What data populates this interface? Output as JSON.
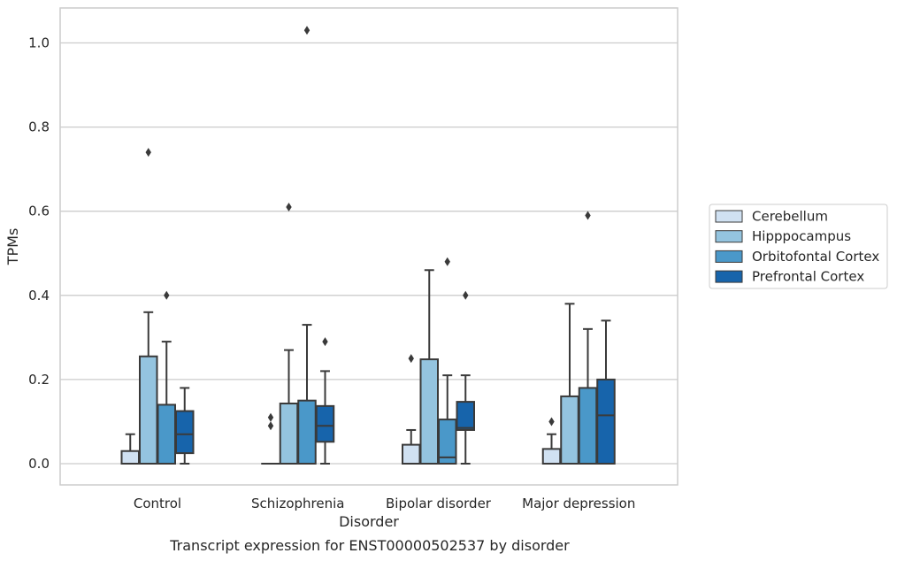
{
  "caption": "Transcript expression for ENST00000502537 by disorder",
  "chart_data": {
    "type": "box",
    "xlabel": "Disorder",
    "ylabel": "TPMs",
    "ylim": [
      -0.05,
      1.08
    ],
    "yticks": [
      "0.0",
      "0.2",
      "0.4",
      "0.6",
      "0.8",
      "1.0"
    ],
    "grid": "horizontal",
    "legend_position": "right",
    "categories": [
      "Control",
      "Schizophrenia",
      "Bipolar disorder",
      "Major depression"
    ],
    "series": [
      {
        "name": "Cerebellum",
        "color": "#d0e1f2",
        "boxes": [
          {
            "q1": 0.0,
            "median": 0.0,
            "q3": 0.03,
            "whisker_low": 0.0,
            "whisker_high": 0.07,
            "outliers": []
          },
          {
            "q1": 0.0,
            "median": 0.0,
            "q3": 0.0,
            "whisker_low": 0.0,
            "whisker_high": 0.0,
            "outliers": [
              0.09,
              0.11
            ]
          },
          {
            "q1": 0.0,
            "median": 0.0,
            "q3": 0.045,
            "whisker_low": 0.0,
            "whisker_high": 0.08,
            "outliers": [
              0.25
            ]
          },
          {
            "q1": 0.0,
            "median": 0.0,
            "q3": 0.035,
            "whisker_low": 0.0,
            "whisker_high": 0.07,
            "outliers": [
              0.1
            ]
          }
        ]
      },
      {
        "name": "Hipppocampus",
        "color": "#94c4df",
        "boxes": [
          {
            "q1": 0.0,
            "median": 0.0,
            "q3": 0.255,
            "whisker_low": 0.0,
            "whisker_high": 0.36,
            "outliers": [
              0.74
            ]
          },
          {
            "q1": 0.0,
            "median": 0.0,
            "q3": 0.143,
            "whisker_low": 0.0,
            "whisker_high": 0.27,
            "outliers": [
              0.61
            ]
          },
          {
            "q1": 0.0,
            "median": 0.0,
            "q3": 0.248,
            "whisker_low": 0.0,
            "whisker_high": 0.46,
            "outliers": []
          },
          {
            "q1": 0.0,
            "median": 0.0,
            "q3": 0.16,
            "whisker_low": 0.0,
            "whisker_high": 0.38,
            "outliers": []
          }
        ]
      },
      {
        "name": "Orbitofontal Cortex",
        "color": "#4a98c9",
        "boxes": [
          {
            "q1": 0.0,
            "median": 0.0,
            "q3": 0.14,
            "whisker_low": 0.0,
            "whisker_high": 0.29,
            "outliers": [
              0.4
            ]
          },
          {
            "q1": 0.0,
            "median": 0.0,
            "q3": 0.15,
            "whisker_low": 0.0,
            "whisker_high": 0.33,
            "outliers": [
              1.03
            ]
          },
          {
            "q1": 0.0,
            "median": 0.015,
            "q3": 0.105,
            "whisker_low": 0.0,
            "whisker_high": 0.21,
            "outliers": [
              0.48
            ]
          },
          {
            "q1": 0.0,
            "median": 0.0,
            "q3": 0.18,
            "whisker_low": 0.0,
            "whisker_high": 0.32,
            "outliers": [
              0.59
            ]
          }
        ]
      },
      {
        "name": "Prefrontal Cortex",
        "color": "#1764ab",
        "boxes": [
          {
            "q1": 0.025,
            "median": 0.07,
            "q3": 0.125,
            "whisker_low": 0.0,
            "whisker_high": 0.18,
            "outliers": []
          },
          {
            "q1": 0.052,
            "median": 0.09,
            "q3": 0.137,
            "whisker_low": 0.0,
            "whisker_high": 0.22,
            "outliers": [
              0.29
            ]
          },
          {
            "q1": 0.08,
            "median": 0.085,
            "q3": 0.147,
            "whisker_low": 0.0,
            "whisker_high": 0.21,
            "outliers": [
              0.4
            ]
          },
          {
            "q1": 0.0,
            "median": 0.115,
            "q3": 0.2,
            "whisker_low": 0.0,
            "whisker_high": 0.34,
            "outliers": []
          }
        ]
      }
    ]
  }
}
